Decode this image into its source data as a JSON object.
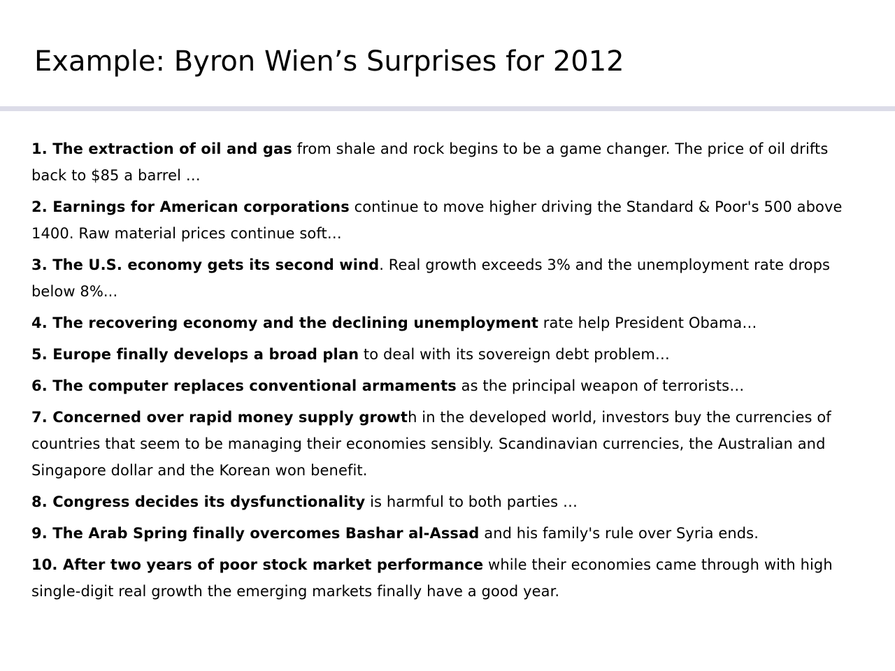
{
  "slide": {
    "title": "Example: Byron Wien’s Surprises for 2012",
    "accent_rule_color": "#dcdce8"
  },
  "items": [
    {
      "lead": "1. The extraction of oil and gas",
      "rest": " from shale and rock begins to be a game changer. The price of oil drifts back to $85 a barrel …"
    },
    {
      "lead": "2. Earnings for American corporations",
      "rest": " continue to move higher driving the Standard & Poor's 500 above 1400. Raw material prices continue soft…"
    },
    {
      "lead": "3. The U.S. economy gets its second wind",
      "rest": ". Real growth exceeds 3% and the unemployment rate drops below 8%..."
    },
    {
      "lead": "4. The recovering economy and the declining unemployment",
      "rest": " rate help President Obama…"
    },
    {
      "lead": "5. Europe finally develops a broad plan",
      "rest": " to deal with its sovereign debt problem…"
    },
    {
      "lead": "6. The computer replaces conventional armaments",
      "rest": " as the principal weapon of terrorists…"
    },
    {
      "lead": "7. Concerned over rapid money supply growt",
      "rest": "h in the developed world, investors buy the currencies of countries that seem to be managing their economies sensibly. Scandinavian currencies, the Australian and Singapore dollar and the Korean won benefit."
    },
    {
      "lead": "8. Congress decides its dysfunctionality",
      "rest": " is harmful to both parties …"
    },
    {
      "lead": "9. The Arab Spring finally overcomes Bashar al-Assad",
      "rest": " and his family's rule over Syria ends."
    },
    {
      "lead": "10. After two years of poor stock market performance",
      "rest": " while their economies came through with high single-digit real growth the emerging markets finally have a good year."
    }
  ]
}
